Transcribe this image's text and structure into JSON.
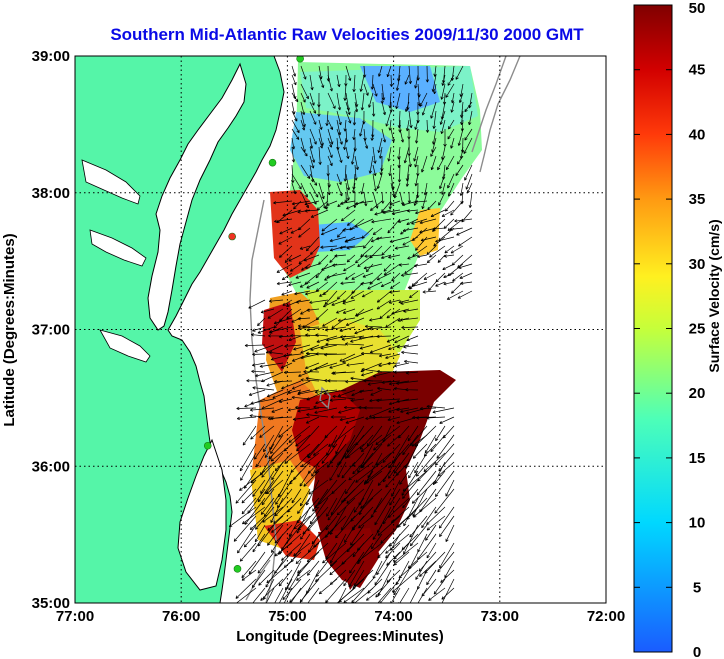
{
  "title": "Southern Mid-Atlantic Raw Velocities 2009/11/30 2000 GMT",
  "xlabel": "Longitude (Degrees:Minutes)",
  "ylabel": "Latitude (Degrees:Minutes)",
  "colorbar": {
    "label": "Surface Velocity (cm/s)",
    "min": 0,
    "max": 50,
    "ticks": [
      "0",
      "5",
      "10",
      "15",
      "20",
      "25",
      "30",
      "35",
      "40",
      "45",
      "50"
    ]
  },
  "map": {
    "lon_range": [
      -77,
      -72
    ],
    "lat_range": [
      35,
      39
    ],
    "x_ticks": [
      {
        "value": -77,
        "label": "77:00"
      },
      {
        "value": -76,
        "label": "76:00"
      },
      {
        "value": -75,
        "label": "75:00"
      },
      {
        "value": -74,
        "label": "74:00"
      },
      {
        "value": -73,
        "label": "73:00"
      },
      {
        "value": -72,
        "label": "72:00"
      }
    ],
    "y_ticks": [
      {
        "value": 39,
        "label": "39:00"
      },
      {
        "value": 38,
        "label": "38:00"
      },
      {
        "value": 37,
        "label": "37:00"
      },
      {
        "value": 36,
        "label": "36:00"
      },
      {
        "value": 35,
        "label": "35:00"
      }
    ],
    "grid": "dotted",
    "land_color": "#55f5a8",
    "coast_color": "#000000",
    "isobath_color": "#8c8c8c",
    "station_sites": [
      {
        "lon": -74.88,
        "lat": 38.98,
        "color": "#22cc22"
      },
      {
        "lon": -75.14,
        "lat": 38.22,
        "color": "#22cc22"
      },
      {
        "lon": -75.52,
        "lat": 37.68,
        "color": "#ee3322"
      },
      {
        "lon": -75.75,
        "lat": 36.15,
        "color": "#22cc22"
      },
      {
        "lon": -75.47,
        "lat": 35.25,
        "color": "#22cc22"
      }
    ]
  }
}
